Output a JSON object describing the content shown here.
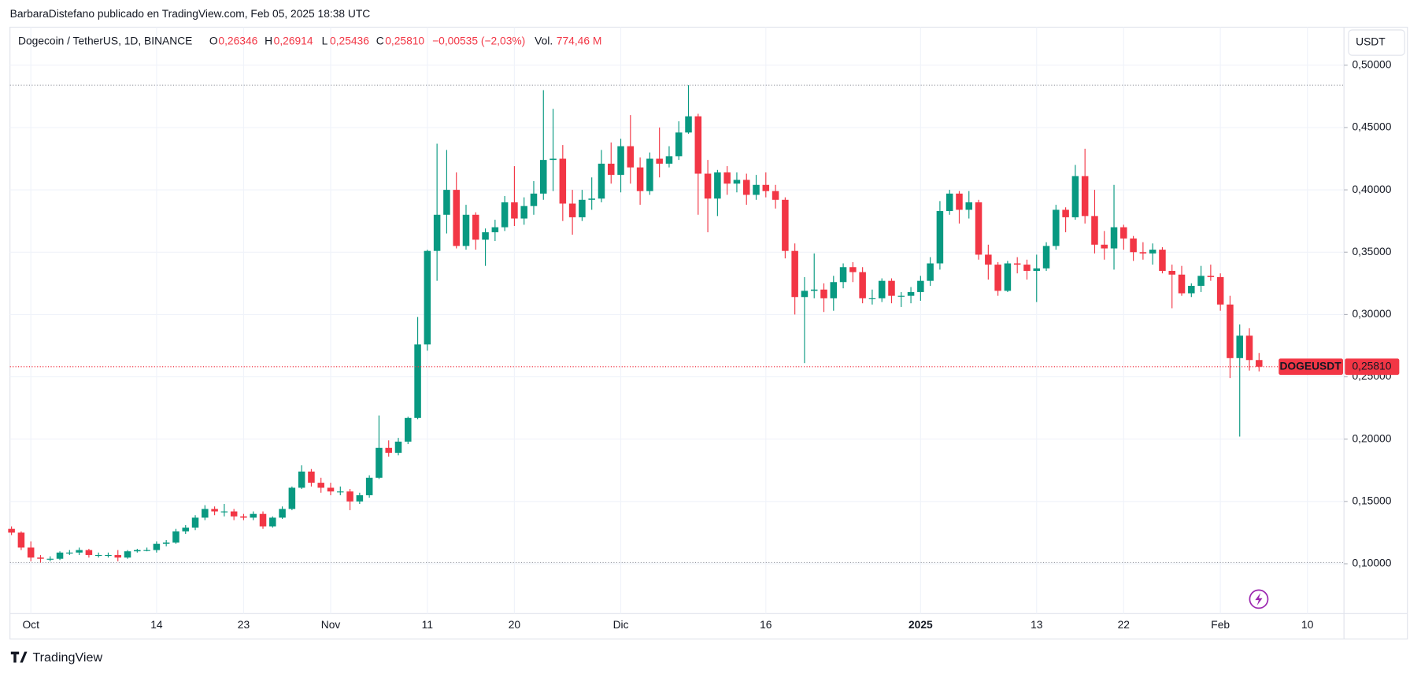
{
  "header": {
    "byline": "BarbaraDistefano publicado en TradingView.com, Feb 05, 2025 18:38 UTC",
    "symbol": "Dogecoin / TetherUS, 1D, BINANCE",
    "ohlc": [
      {
        "key": "O",
        "text": "0,26346"
      },
      {
        "key": "H",
        "text": "0,26914"
      },
      {
        "key": "L",
        "text": "0,25436"
      },
      {
        "key": "C",
        "text": "0,25810"
      }
    ],
    "change": "−0,00535 (−2,03%)",
    "volume_key": "Vol.",
    "volume": "774,46 M",
    "currency": "USDT",
    "brand": "TradingView"
  },
  "chart_data": {
    "type": "candlestick",
    "up_color": "#089981",
    "down_color": "#f23645",
    "grid": true,
    "open": [
      0.128,
      0.125,
      0.113,
      0.105,
      0.104,
      0.104,
      0.109,
      0.109,
      0.111,
      0.107,
      0.107,
      0.107,
      0.105,
      0.11,
      0.111,
      0.111,
      0.116,
      0.117,
      0.126,
      0.129,
      0.137,
      0.144,
      0.142,
      0.142,
      0.138,
      0.137,
      0.14,
      0.13,
      0.137,
      0.144,
      0.161,
      0.174,
      0.165,
      0.161,
      0.158,
      0.158,
      0.15,
      0.155,
      0.169,
      0.193,
      0.189,
      0.198,
      0.217,
      0.276,
      0.351,
      0.38,
      0.4,
      0.355,
      0.38,
      0.36,
      0.366,
      0.37,
      0.39,
      0.377,
      0.387,
      0.397,
      0.424,
      0.425,
      0.389,
      0.378,
      0.392,
      0.393,
      0.421,
      0.412,
      0.435,
      0.418,
      0.399,
      0.425,
      0.421,
      0.427,
      0.446,
      0.459,
      0.413,
      0.393,
      0.414,
      0.405,
      0.408,
      0.396,
      0.404,
      0.399,
      0.392,
      0.351,
      0.314,
      0.319,
      0.32,
      0.313,
      0.326,
      0.338,
      0.334,
      0.313,
      0.313,
      0.327,
      0.315,
      0.315,
      0.318,
      0.327,
      0.341,
      0.383,
      0.397,
      0.384,
      0.39,
      0.348,
      0.34,
      0.319,
      0.341,
      0.34,
      0.335,
      0.337,
      0.355,
      0.384,
      0.378,
      0.411,
      0.379,
      0.356,
      0.353,
      0.37,
      0.361,
      0.35,
      0.349,
      0.352,
      0.335,
      0.332,
      0.317,
      0.323,
      0.331,
      0.33,
      0.308,
      0.265,
      0.283,
      0.26346
    ],
    "high": [
      0.13,
      0.126,
      0.118,
      0.107,
      0.106,
      0.11,
      0.111,
      0.113,
      0.112,
      0.109,
      0.109,
      0.111,
      0.111,
      0.112,
      0.113,
      0.118,
      0.119,
      0.128,
      0.131,
      0.139,
      0.147,
      0.146,
      0.148,
      0.144,
      0.14,
      0.142,
      0.142,
      0.138,
      0.146,
      0.162,
      0.179,
      0.176,
      0.169,
      0.165,
      0.162,
      0.16,
      0.157,
      0.171,
      0.219,
      0.199,
      0.201,
      0.218,
      0.298,
      0.352,
      0.437,
      0.432,
      0.414,
      0.388,
      0.382,
      0.369,
      0.376,
      0.395,
      0.419,
      0.394,
      0.407,
      0.48,
      0.465,
      0.436,
      0.4,
      0.4,
      0.41,
      0.432,
      0.438,
      0.441,
      0.46,
      0.426,
      0.43,
      0.45,
      0.435,
      0.455,
      0.484,
      0.461,
      0.424,
      0.416,
      0.419,
      0.414,
      0.413,
      0.412,
      0.414,
      0.404,
      0.394,
      0.357,
      0.33,
      0.349,
      0.325,
      0.331,
      0.341,
      0.342,
      0.338,
      0.32,
      0.329,
      0.329,
      0.318,
      0.322,
      0.331,
      0.346,
      0.391,
      0.4,
      0.399,
      0.399,
      0.392,
      0.356,
      0.342,
      0.343,
      0.346,
      0.344,
      0.348,
      0.358,
      0.388,
      0.386,
      0.42,
      0.433,
      0.4,
      0.367,
      0.404,
      0.372,
      0.363,
      0.358,
      0.357,
      0.354,
      0.34,
      0.339,
      0.325,
      0.339,
      0.34,
      0.333,
      0.315,
      0.292,
      0.289,
      0.26914
    ],
    "low": [
      0.123,
      0.111,
      0.102,
      0.101,
      0.102,
      0.103,
      0.107,
      0.107,
      0.105,
      0.105,
      0.105,
      0.102,
      0.104,
      0.109,
      0.11,
      0.109,
      0.114,
      0.116,
      0.124,
      0.127,
      0.135,
      0.139,
      0.138,
      0.135,
      0.135,
      0.135,
      0.128,
      0.129,
      0.136,
      0.143,
      0.16,
      0.162,
      0.157,
      0.155,
      0.155,
      0.143,
      0.148,
      0.153,
      0.168,
      0.186,
      0.187,
      0.196,
      0.216,
      0.271,
      0.327,
      0.365,
      0.353,
      0.352,
      0.352,
      0.339,
      0.359,
      0.367,
      0.371,
      0.372,
      0.38,
      0.392,
      0.399,
      0.375,
      0.364,
      0.375,
      0.384,
      0.39,
      0.405,
      0.398,
      0.405,
      0.388,
      0.396,
      0.41,
      0.418,
      0.424,
      0.445,
      0.38,
      0.366,
      0.379,
      0.396,
      0.398,
      0.388,
      0.392,
      0.394,
      0.385,
      0.345,
      0.3,
      0.261,
      0.313,
      0.302,
      0.303,
      0.321,
      0.326,
      0.309,
      0.308,
      0.31,
      0.309,
      0.306,
      0.309,
      0.311,
      0.323,
      0.336,
      0.38,
      0.373,
      0.377,
      0.344,
      0.328,
      0.315,
      0.318,
      0.333,
      0.328,
      0.31,
      0.335,
      0.352,
      0.366,
      0.376,
      0.373,
      0.349,
      0.344,
      0.336,
      0.352,
      0.343,
      0.344,
      0.34,
      0.333,
      0.305,
      0.315,
      0.314,
      0.318,
      0.327,
      0.303,
      0.249,
      0.202,
      0.255,
      0.25436
    ],
    "close": [
      0.125,
      0.113,
      0.105,
      0.104,
      0.104,
      0.109,
      0.109,
      0.111,
      0.107,
      0.107,
      0.107,
      0.105,
      0.11,
      0.111,
      0.111,
      0.116,
      0.117,
      0.126,
      0.129,
      0.137,
      0.144,
      0.142,
      0.142,
      0.138,
      0.137,
      0.14,
      0.13,
      0.137,
      0.144,
      0.161,
      0.174,
      0.165,
      0.161,
      0.158,
      0.158,
      0.15,
      0.155,
      0.169,
      0.193,
      0.189,
      0.198,
      0.217,
      0.276,
      0.351,
      0.38,
      0.4,
      0.355,
      0.38,
      0.36,
      0.366,
      0.37,
      0.39,
      0.377,
      0.387,
      0.397,
      0.424,
      0.425,
      0.389,
      0.378,
      0.392,
      0.393,
      0.421,
      0.412,
      0.435,
      0.418,
      0.399,
      0.425,
      0.421,
      0.427,
      0.446,
      0.459,
      0.413,
      0.393,
      0.414,
      0.405,
      0.408,
      0.396,
      0.404,
      0.399,
      0.392,
      0.351,
      0.314,
      0.319,
      0.32,
      0.313,
      0.326,
      0.338,
      0.334,
      0.313,
      0.313,
      0.327,
      0.315,
      0.315,
      0.318,
      0.327,
      0.341,
      0.383,
      0.397,
      0.384,
      0.39,
      0.348,
      0.34,
      0.319,
      0.341,
      0.34,
      0.335,
      0.337,
      0.355,
      0.384,
      0.378,
      0.411,
      0.379,
      0.356,
      0.353,
      0.37,
      0.361,
      0.35,
      0.349,
      0.352,
      0.335,
      0.332,
      0.317,
      0.323,
      0.331,
      0.33,
      0.308,
      0.265,
      0.283,
      0.26346,
      0.2581
    ],
    "xlim": [
      -0.16,
      137.78
    ],
    "xticks": [
      {
        "value": 2,
        "label": "Oct"
      },
      {
        "value": 15,
        "label": "14"
      },
      {
        "value": 24,
        "label": "23"
      },
      {
        "value": 33,
        "label": "Nov"
      },
      {
        "value": 43,
        "label": "11"
      },
      {
        "value": 52,
        "label": "20"
      },
      {
        "value": 63,
        "label": "Dic"
      },
      {
        "value": 78,
        "label": "16"
      },
      {
        "value": 94,
        "label": "2025"
      },
      {
        "value": 106,
        "label": "13"
      },
      {
        "value": 115,
        "label": "22"
      },
      {
        "value": 125,
        "label": "Feb"
      },
      {
        "value": 134,
        "label": "10"
      }
    ],
    "ylim": [
      0.06,
      0.5305
    ],
    "yticks": [
      {
        "value": 0.1,
        "label": "0,10000"
      },
      {
        "value": 0.15,
        "label": "0,15000"
      },
      {
        "value": 0.2,
        "label": "0,20000"
      },
      {
        "value": 0.25,
        "label": "0,25000"
      },
      {
        "value": 0.3,
        "label": "0,30000"
      },
      {
        "value": 0.35,
        "label": "0,35000"
      },
      {
        "value": 0.4,
        "label": "0,40000"
      },
      {
        "value": 0.45,
        "label": "0,45000"
      },
      {
        "value": 0.5,
        "label": "0,50000"
      }
    ],
    "range_lines": [
      0.484,
      0.101
    ],
    "price_tag": {
      "name": "DOGEUSDT",
      "value": 0.2581,
      "label": "0,25810"
    }
  }
}
